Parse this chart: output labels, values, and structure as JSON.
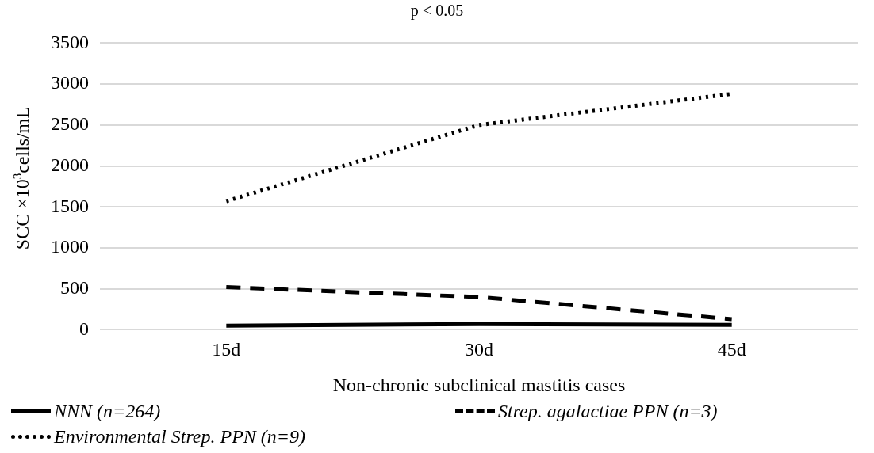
{
  "chart_data": {
    "type": "line",
    "xlabel": "Non-chronic subclinical mastitis cases",
    "ylabel": "SCC ×10$^{3}$cells/mL",
    "categories": [
      "15d",
      "30d",
      "45d"
    ],
    "series": [
      {
        "name": "NNN (n=264)",
        "color": "#000000",
        "line_style": "solid",
        "values": [
          50,
          70,
          60
        ]
      },
      {
        "name": "Strep. agalactiae PPN (n=3)",
        "color": "#000000",
        "line_style": "dashed",
        "values": [
          520,
          400,
          130
        ]
      },
      {
        "name": "Environmental Strep. PPN (n=9)",
        "color": "#000000",
        "line_style": "dotted",
        "values": [
          1570,
          2500,
          2880
        ]
      }
    ],
    "ylim": [
      0,
      3500
    ],
    "yticks": [
      0,
      500,
      1000,
      1500,
      2000,
      2500,
      3000,
      3500
    ],
    "grid": "y",
    "legend": "bottom",
    "marker": "none",
    "annotations": [
      "p < 0.05"
    ]
  }
}
